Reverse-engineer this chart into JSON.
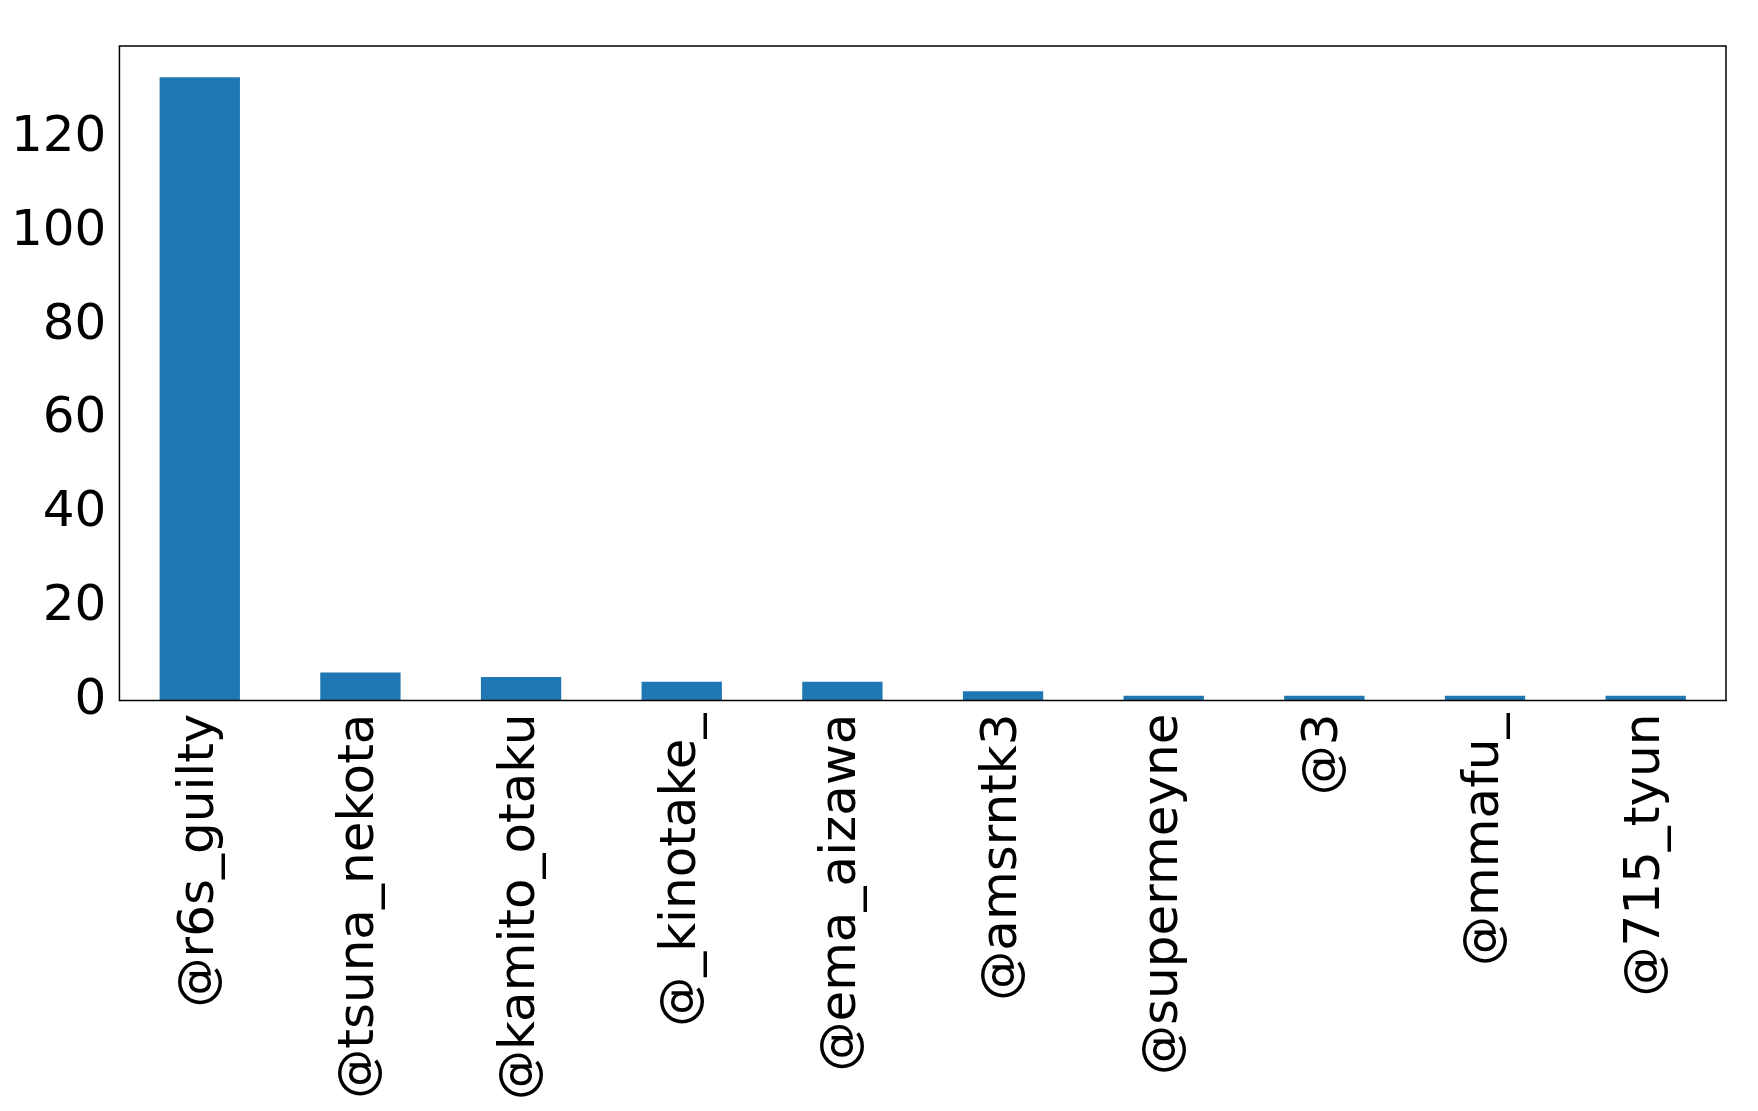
{
  "chart_data": {
    "type": "bar",
    "categories": [
      "@r6s_guilty",
      "@tsuna_nekota",
      "@kamito_otaku",
      "@_kinotake_",
      "@ema_aizawa",
      "@amsrntk3",
      "@supermeyne",
      "@3",
      "@mmafu_",
      "@715_tyun"
    ],
    "values": [
      133,
      6,
      5,
      4,
      4,
      2,
      1,
      1,
      1,
      1
    ],
    "color": "#1f77b4",
    "ylim": [
      0,
      139.65
    ],
    "yticks": [
      0,
      20,
      40,
      60,
      80,
      100,
      120
    ],
    "grid": false,
    "legend": false
  }
}
